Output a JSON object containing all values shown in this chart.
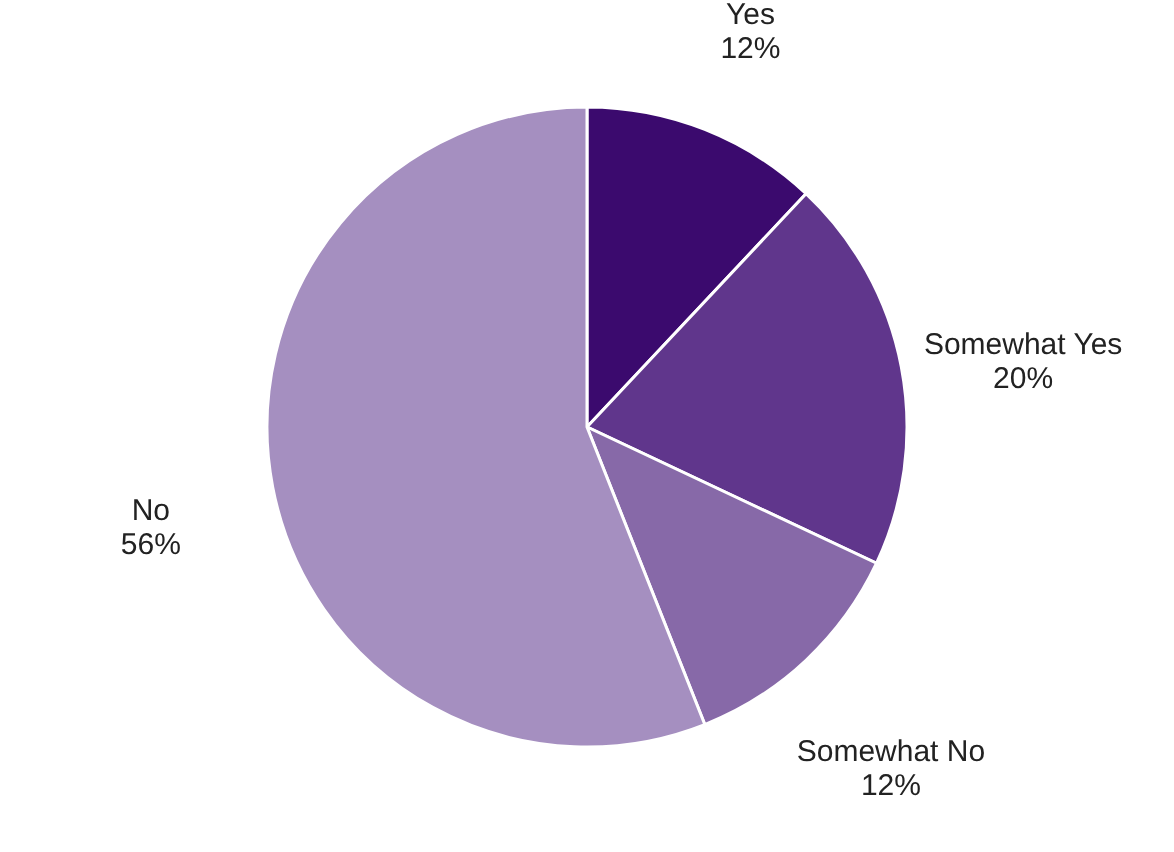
{
  "chart_data": {
    "type": "pie",
    "categories": [
      "Yes",
      "Somewhat Yes",
      "Somewhat No",
      "No"
    ],
    "values": [
      12,
      20,
      12,
      56
    ],
    "value_labels": [
      "12%",
      "20%",
      "12%",
      "56%"
    ],
    "colors": [
      "#3b0a6e",
      "#60368c",
      "#8769a8",
      "#a58fc0"
    ],
    "legend": false
  }
}
